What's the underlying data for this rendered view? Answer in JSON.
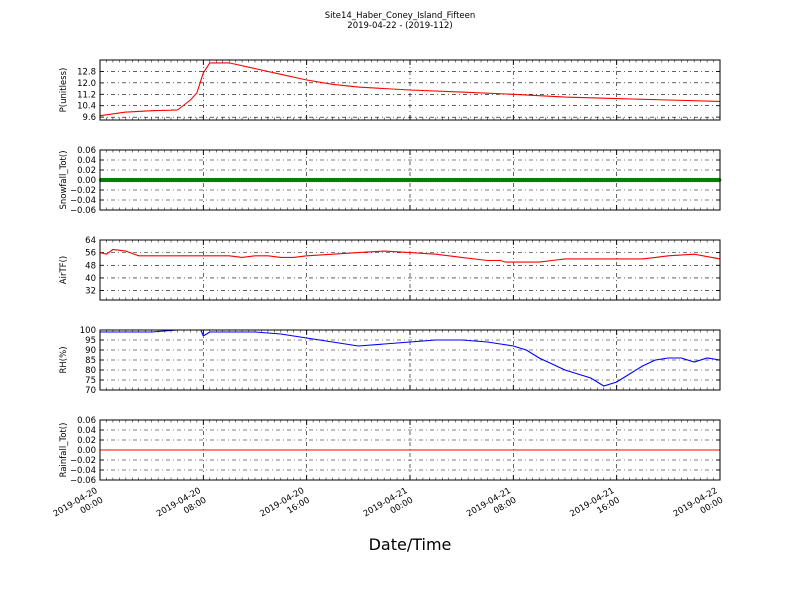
{
  "figure": {
    "title": "Site14_Haber_Coney_Island_Fifteen",
    "subtitle": "2019-04-22 - (2019-112)",
    "xlabel": "Date/Time",
    "x_ticks": [
      "2019-04-20\n00:00",
      "2019-04-20\n08:00",
      "2019-04-20\n16:00",
      "2019-04-21\n00:00",
      "2019-04-21\n08:00",
      "2019-04-21\n16:00",
      "2019-04-22\n00:00"
    ]
  },
  "chart_data": [
    {
      "type": "line",
      "ylabel": "P(unitless)",
      "ylim": [
        9.4,
        13.6
      ],
      "yticks": [
        9.6,
        10.4,
        11.2,
        12.0,
        12.8
      ],
      "ytick_labels": [
        "9.6",
        "10.4",
        "11.2",
        "12.0",
        "12.8"
      ],
      "color": "#ff0000",
      "x_hours": [
        0,
        2,
        4,
        6,
        5.5,
        6,
        7,
        7.5,
        8,
        8.5,
        9,
        10,
        12,
        14,
        16,
        18,
        20,
        24,
        28,
        32,
        34,
        36,
        40,
        44,
        48
      ],
      "y": [
        9.7,
        9.95,
        10.05,
        10.1,
        10.1,
        10.1,
        10.8,
        11.3,
        12.7,
        13.4,
        13.4,
        13.4,
        13.0,
        12.6,
        12.2,
        11.9,
        11.7,
        11.5,
        11.35,
        11.2,
        11.1,
        11.0,
        10.9,
        10.8,
        10.7
      ],
      "grid": true
    },
    {
      "type": "line",
      "ylabel": "Snowfall_Tot()",
      "ylim": [
        -0.06,
        0.06
      ],
      "yticks": [
        -0.06,
        -0.04,
        -0.02,
        0.0,
        0.02,
        0.04,
        0.06
      ],
      "ytick_labels": [
        "−0.06",
        "−0.04",
        "−0.02",
        "0.00",
        "0.02",
        "0.04",
        "0.06"
      ],
      "color": "#008000",
      "marker": "dot",
      "x_hours": [
        0,
        48
      ],
      "y": [
        0,
        0
      ],
      "grid": true
    },
    {
      "type": "line",
      "ylabel": "AirTF()",
      "ylim": [
        26,
        64
      ],
      "yticks": [
        32,
        40,
        48,
        56,
        64
      ],
      "ytick_labels": [
        "32",
        "40",
        "48",
        "56",
        "64"
      ],
      "color": "#ff0000",
      "x_hours": [
        0,
        0.5,
        1,
        2,
        3,
        4,
        6,
        8,
        10,
        11,
        12,
        13,
        14,
        15,
        16,
        18,
        20,
        22,
        24,
        26,
        28,
        30,
        31,
        31.4,
        31.6,
        32,
        33,
        34,
        35,
        36,
        37,
        38,
        39,
        40,
        41,
        42,
        43,
        44,
        46,
        48
      ],
      "y": [
        56,
        55,
        58,
        57,
        54,
        54,
        54,
        54,
        54,
        53,
        54,
        54,
        53,
        53,
        54,
        55,
        56,
        57,
        56,
        55,
        53,
        51,
        51,
        50,
        50,
        50,
        50,
        50,
        51,
        52,
        52,
        52,
        52,
        52,
        52,
        52,
        53,
        54,
        55,
        52
      ],
      "grid": true
    },
    {
      "type": "line",
      "ylabel": "RH(%)",
      "ylim": [
        70,
        100
      ],
      "yticks": [
        70,
        75,
        80,
        85,
        90,
        95,
        100
      ],
      "ytick_labels": [
        "70",
        "75",
        "80",
        "85",
        "90",
        "95",
        "100"
      ],
      "color": "#0000ff",
      "x_hours": [
        0,
        2,
        4,
        6,
        7.8,
        8,
        8.5,
        9,
        12,
        14,
        16,
        18,
        20,
        22,
        24,
        26,
        28,
        30,
        31,
        32,
        33,
        34,
        35,
        36,
        37,
        38,
        39,
        40,
        41,
        42,
        43,
        44,
        45,
        46,
        47,
        48
      ],
      "y": [
        99,
        99,
        99,
        100,
        100,
        97,
        99,
        99,
        99,
        98,
        96,
        94,
        92,
        93,
        94,
        95,
        95,
        94,
        93,
        92,
        90,
        86,
        83,
        80,
        78,
        76,
        72,
        74,
        78,
        82,
        85,
        86,
        86,
        84,
        86,
        85
      ],
      "grid": true
    },
    {
      "type": "line",
      "ylabel": "Rainfall_Tot()",
      "ylim": [
        -0.06,
        0.06
      ],
      "yticks": [
        -0.06,
        -0.04,
        -0.02,
        0.0,
        0.02,
        0.04,
        0.06
      ],
      "ytick_labels": [
        "−0.06",
        "−0.04",
        "−0.02",
        "0.00",
        "0.02",
        "0.04",
        "0.06"
      ],
      "color": "#ff0000",
      "x_hours": [
        0,
        48
      ],
      "y": [
        0,
        0
      ],
      "grid": true
    }
  ]
}
